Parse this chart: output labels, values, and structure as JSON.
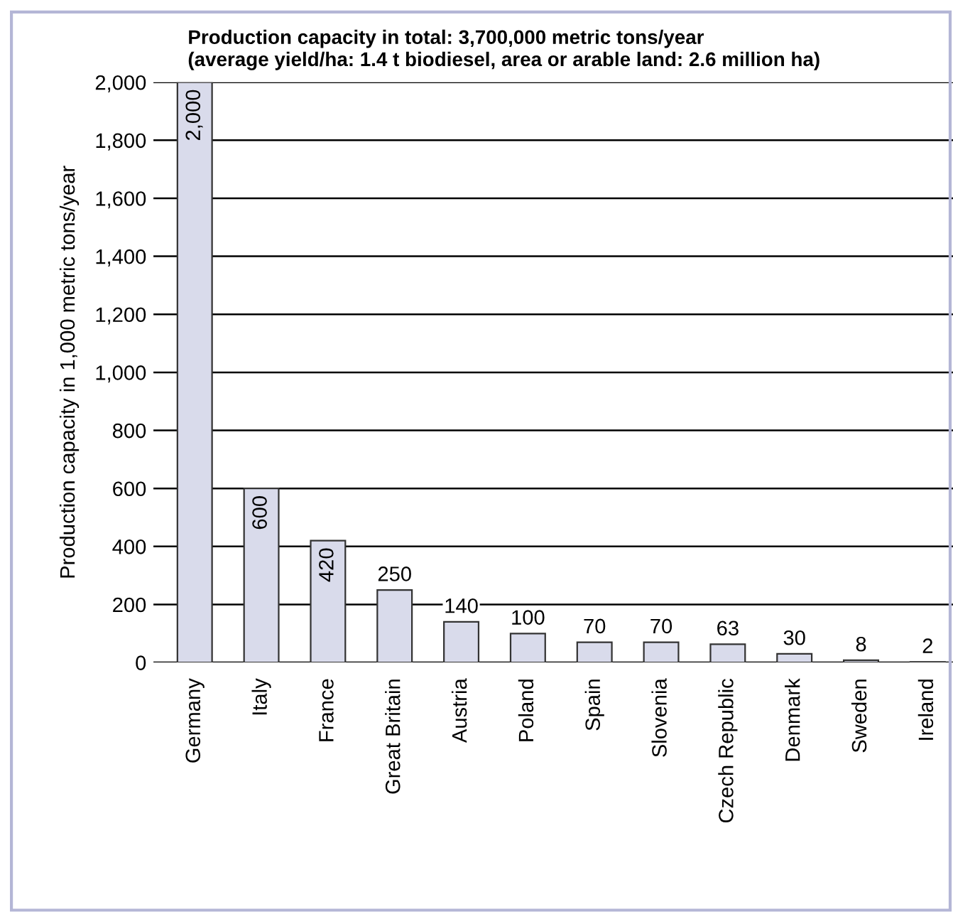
{
  "chart_data": {
    "type": "bar",
    "title": "Production capacity in total: 3,700,000 metric tons/year",
    "subtitle": "(average yield/ha: 1.4 t biodiesel, area or arable land: 2.6 million ha)",
    "ylabel": "Production capacity in 1,000 metric tons/year",
    "categories": [
      "Germany",
      "Italy",
      "France",
      "Great Britain",
      "Austria",
      "Poland",
      "Spain",
      "Slovenia",
      "Czech Republic",
      "Denmark",
      "Sweden",
      "Ireland"
    ],
    "values": [
      2000,
      600,
      420,
      250,
      140,
      100,
      70,
      70,
      63,
      30,
      8,
      2
    ],
    "value_labels": [
      "2,000",
      "600",
      "420",
      "250",
      "140",
      "100",
      "70",
      "70",
      "63",
      "30",
      "8",
      "2"
    ],
    "color": "#d9dbeb",
    "ylim": [
      0,
      2000
    ],
    "yticks": [
      0,
      200,
      400,
      600,
      800,
      {
        "value": 1000,
        "label": "1,000"
      },
      {
        "value": 1200,
        "label": "1,200"
      },
      {
        "value": 1400,
        "label": "1,400"
      },
      {
        "value": 1600,
        "label": "1,600"
      },
      {
        "value": 1800,
        "label": "1,800"
      },
      {
        "value": 2000,
        "label": "2,000"
      }
    ],
    "grid": "y"
  }
}
